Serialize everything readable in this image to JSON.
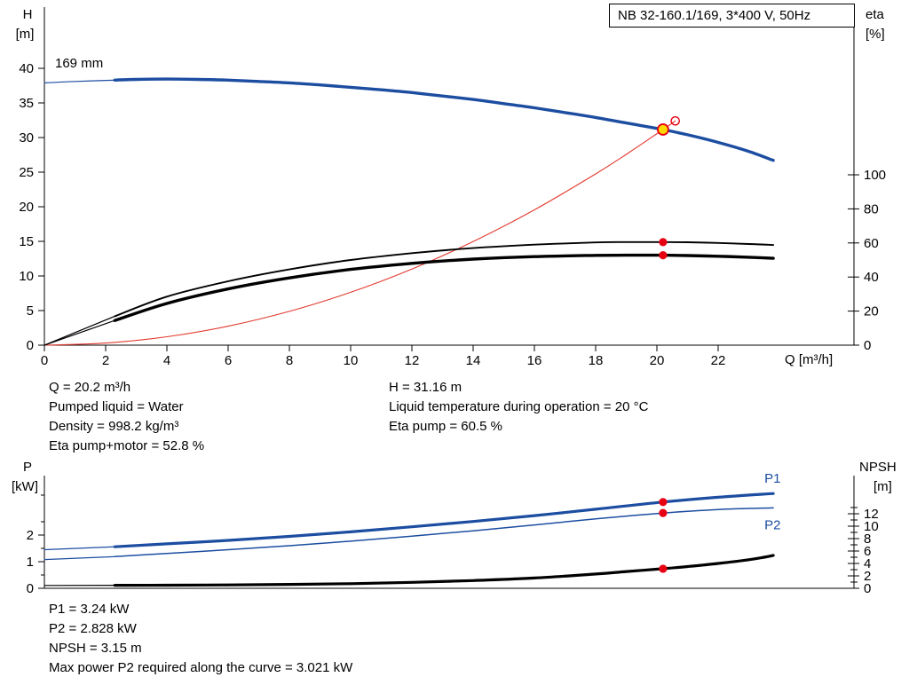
{
  "title_box": "NB 32-160.1/169, 3*400 V, 50Hz",
  "colors": {
    "curve_blue": "#1c4da1",
    "curve_red": "#e23a2e",
    "marker_red": "#e60012",
    "duty_yellow": "#ffd800",
    "curve_black": "#000000"
  },
  "info_top_left": [
    "Q = 20.2 m³/h",
    "Pumped liquid = Water",
    "Density = 998.2 kg/m³",
    "Eta pump+motor = 52.8 %"
  ],
  "info_top_right": [
    "H = 31.16 m",
    "Liquid temperature during operation = 20 °C",
    "Eta pump = 60.5 %"
  ],
  "info_bottom": [
    "P1 = 3.24 kW",
    "P2 = 2.828 kW",
    "NPSH = 3.15 m",
    "Max power P2 required along the curve = 3.021 kW"
  ],
  "chart_data": [
    {
      "type": "line",
      "title": "NB 32-160.1/169, 3*400 V, 50Hz",
      "xlabel": "Q [m³/h]",
      "ylabel_left": [
        "H",
        "[m]"
      ],
      "ylabel_right": [
        "eta",
        "[%]"
      ],
      "annotation": "169 mm",
      "xlim": [
        0,
        26.4
      ],
      "x_ticks": [
        0,
        2,
        4,
        6,
        8,
        10,
        12,
        14,
        16,
        18,
        20,
        22
      ],
      "ylim_left": [
        0,
        48.8
      ],
      "y_ticks_left": [
        0,
        5,
        10,
        15,
        20,
        25,
        30,
        35,
        40
      ],
      "ylim_right": [
        0,
        100
      ],
      "y_ticks_right": [
        0,
        20,
        40,
        60,
        80,
        100
      ],
      "grid": false,
      "series": [
        {
          "name": "head-curve",
          "axis": "H",
          "color": "blue",
          "width": 3.4,
          "thin_until": 2.3,
          "x": [
            0,
            1,
            2.3,
            3,
            4,
            5,
            6,
            7,
            8,
            9,
            10,
            11,
            12,
            13,
            14,
            15,
            16,
            17,
            18,
            19,
            20.2,
            21,
            22,
            23,
            23.8
          ],
          "y": [
            37.9,
            38.1,
            38.3,
            38.4,
            38.45,
            38.4,
            38.3,
            38.1,
            37.9,
            37.6,
            37.25,
            36.9,
            36.5,
            36.0,
            35.5,
            34.9,
            34.3,
            33.6,
            32.9,
            32.1,
            31.16,
            30.4,
            29.3,
            28.0,
            26.7
          ]
        },
        {
          "name": "system-curve",
          "axis": "H",
          "color": "red",
          "width": 1.1,
          "thin_until": null,
          "x": [
            0,
            2,
            4,
            6,
            8,
            10,
            12,
            14,
            16,
            18,
            19,
            20.2,
            20.6
          ],
          "y": [
            0,
            0.31,
            1.22,
            2.75,
            4.89,
            7.64,
            11.0,
            14.97,
            19.55,
            24.75,
            27.57,
            31.16,
            32.4
          ]
        },
        {
          "name": "eta-pump-curve",
          "axis": "eta",
          "color": "black",
          "width": 1.9,
          "thin_until": 2.3,
          "x": [
            0,
            2.3,
            4,
            6,
            8,
            10,
            12,
            14,
            16,
            18,
            19,
            20.2,
            21,
            22,
            23,
            23.8
          ],
          "y": [
            0,
            17,
            28.5,
            37.5,
            44.5,
            50,
            54,
            57,
            59,
            60.3,
            60.5,
            60.5,
            60.4,
            60,
            59.4,
            58.8
          ]
        },
        {
          "name": "eta-pump-motor-curve",
          "axis": "eta",
          "color": "black",
          "width": 3.4,
          "thin_until": 2.3,
          "x": [
            0,
            2.3,
            4,
            6,
            8,
            10,
            12,
            14,
            16,
            18,
            19,
            20.2,
            21,
            22,
            23,
            23.8
          ],
          "y": [
            0,
            14.5,
            24.5,
            33,
            39.5,
            44.5,
            48,
            50.5,
            52,
            52.7,
            52.8,
            52.8,
            52.6,
            52.2,
            51.6,
            51
          ]
        }
      ],
      "markers": [
        {
          "kind": "duty",
          "axis": "H",
          "x": 20.2,
          "y": 31.16
        },
        {
          "kind": "open",
          "axis": "H",
          "x": 20.6,
          "y": 32.4
        },
        {
          "kind": "dot",
          "axis": "eta",
          "x": 20.2,
          "y": 60.5
        },
        {
          "kind": "dot",
          "axis": "eta",
          "x": 20.2,
          "y": 52.8
        }
      ]
    },
    {
      "type": "line",
      "xlabel": "",
      "ylabel_left": [
        "P",
        "[kW]"
      ],
      "ylabel_right": [
        "NPSH",
        "[m]"
      ],
      "xlim": [
        0,
        26.4
      ],
      "ylim_left": [
        0,
        4.2
      ],
      "y_ticks_left": [
        0,
        1,
        2
      ],
      "ylim_right": [
        0,
        14
      ],
      "y_ticks_right": [
        0,
        2,
        4,
        6,
        8,
        10,
        12
      ],
      "grid": false,
      "series": [
        {
          "name": "p1-curve",
          "label": "P1",
          "axis": "P",
          "color": "blue",
          "width": 3.2,
          "thin_until": 2.3,
          "x": [
            0,
            2.3,
            4,
            6,
            8,
            10,
            12,
            14,
            16,
            18,
            20.2,
            22,
            23.8
          ],
          "y": [
            1.45,
            1.56,
            1.67,
            1.8,
            1.95,
            2.12,
            2.31,
            2.51,
            2.73,
            2.97,
            3.24,
            3.42,
            3.56
          ]
        },
        {
          "name": "p2-curve",
          "label": "P2",
          "axis": "P",
          "color": "blue",
          "width": 1.5,
          "thin_until": 2.3,
          "x": [
            0,
            2.3,
            4,
            6,
            8,
            10,
            12,
            14,
            16,
            18,
            20.2,
            22,
            23.8
          ],
          "y": [
            1.08,
            1.19,
            1.31,
            1.45,
            1.6,
            1.77,
            1.96,
            2.16,
            2.38,
            2.61,
            2.828,
            2.96,
            3.021
          ]
        },
        {
          "name": "npsh-curve",
          "label": null,
          "axis": "NPSH",
          "color": "black",
          "width": 3.2,
          "thin_until": 2.3,
          "x": [
            0,
            2.3,
            4,
            6,
            8,
            10,
            12,
            14,
            16,
            18,
            19,
            20.2,
            21,
            22,
            23,
            23.5,
            23.8
          ],
          "y": [
            0.45,
            0.48,
            0.5,
            0.55,
            0.63,
            0.75,
            0.95,
            1.25,
            1.65,
            2.3,
            2.7,
            3.15,
            3.5,
            4.0,
            4.6,
            5.0,
            5.3
          ]
        }
      ],
      "markers": [
        {
          "kind": "dot",
          "axis": "P",
          "x": 20.2,
          "y": 3.24
        },
        {
          "kind": "dot",
          "axis": "P",
          "x": 20.2,
          "y": 2.828
        },
        {
          "kind": "dot",
          "axis": "NPSH",
          "x": 20.2,
          "y": 3.15
        }
      ]
    }
  ]
}
